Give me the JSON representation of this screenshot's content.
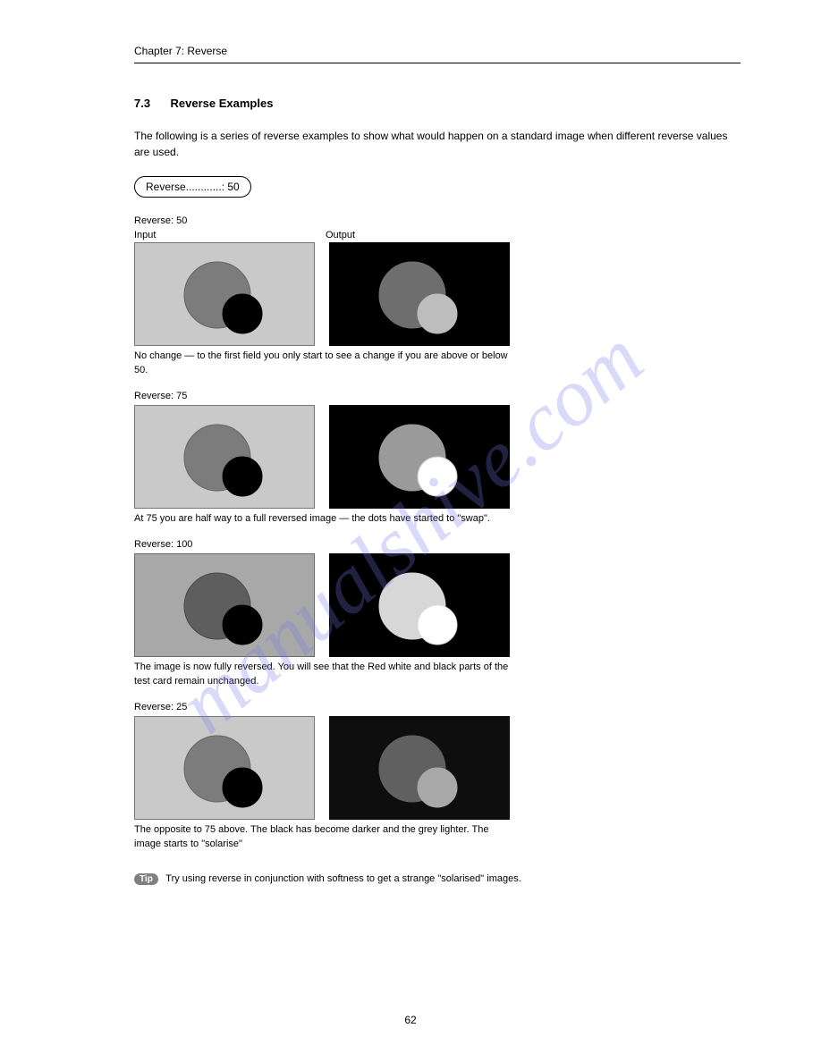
{
  "header": {
    "chapter": "Chapter 7: Reverse"
  },
  "section": {
    "number": "7.3",
    "title": "Reverse Examples"
  },
  "intro": "The following is a series of reverse examples to show what would happen on a standard image when different reverse values are used.",
  "capsule_label": "Reverse............:  50",
  "legend": {
    "input": "Input",
    "output": "Output"
  },
  "rows": [
    {
      "label": "Reverse: 50",
      "input": {
        "bg": "#c9c9c9",
        "stroke": "#777",
        "big": "#7c7c7c",
        "big_stroke": "#666",
        "small": "#000000",
        "small_stroke": "#000"
      },
      "output": {
        "bg": "#000000",
        "stroke": "#000",
        "big": "#6e6e6e",
        "big_stroke": "#6e6e6e",
        "small": "#bdbdbd",
        "small_stroke": "#bdbdbd"
      },
      "desc": "No change — to the first field you only start to see a change if you are above or below 50."
    },
    {
      "label": "Reverse: 75",
      "input": {
        "bg": "#c9c9c9",
        "stroke": "#777",
        "big": "#7c7c7c",
        "big_stroke": "#666",
        "small": "#000000",
        "small_stroke": "#000"
      },
      "output": {
        "bg": "#000000",
        "stroke": "#000",
        "big": "#9a9a9a",
        "big_stroke": "#9a9a9a",
        "small": "#ffffff",
        "small_stroke": "#cccccc"
      },
      "desc": "At 75 you are half way to a full reversed image — the dots have started to \"swap\"."
    },
    {
      "label": "Reverse: 100",
      "input": {
        "bg": "#a8a8a8",
        "stroke": "#6a6a6a",
        "big": "#5e5e5e",
        "big_stroke": "#4a4a4a",
        "small": "#000000",
        "small_stroke": "#000"
      },
      "output": {
        "bg": "#000000",
        "stroke": "#000",
        "big": "#d7d7d7",
        "big_stroke": "#d7d7d7",
        "small": "#ffffff",
        "small_stroke": "#dddddd"
      },
      "desc": "The image is now fully reversed. You will see that the Red white and black parts of the test card remain unchanged."
    },
    {
      "label": "Reverse: 25",
      "input": {
        "bg": "#c9c9c9",
        "stroke": "#777",
        "big": "#7c7c7c",
        "big_stroke": "#666",
        "small": "#000000",
        "small_stroke": "#000"
      },
      "output": {
        "bg": "#0e0e0e",
        "stroke": "#0e0e0e",
        "big": "#606060",
        "big_stroke": "#606060",
        "small": "#a8a8a8",
        "small_stroke": "#a8a8a8"
      },
      "desc": "The opposite to 75 above. The black has become darker and the grey lighter. The image starts to \"solarise\""
    }
  ],
  "tip": {
    "label": "Tip",
    "text": "Try using reverse in conjunction with softness to get a strange \"solarised\" images."
  },
  "page_number": "62",
  "watermark": "manualshive.com"
}
